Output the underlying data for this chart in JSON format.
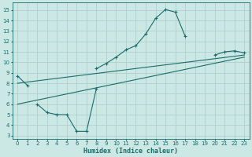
{
  "xlabel": "Humidex (Indice chaleur)",
  "ylabel": "",
  "bg_color": "#cce8e4",
  "line_color": "#1a6b6b",
  "grid_color": "#aecfcc",
  "xlim": [
    -0.5,
    23.5
  ],
  "ylim": [
    2.7,
    15.7
  ],
  "yticks": [
    3,
    4,
    5,
    6,
    7,
    8,
    9,
    10,
    11,
    12,
    13,
    14,
    15
  ],
  "xticks": [
    0,
    1,
    2,
    3,
    4,
    5,
    6,
    7,
    8,
    9,
    10,
    11,
    12,
    13,
    14,
    15,
    16,
    17,
    18,
    19,
    20,
    21,
    22,
    23
  ],
  "curve1_x": [
    0,
    1,
    8,
    9,
    10,
    11,
    12,
    13,
    14,
    15,
    16,
    17,
    20,
    21,
    22,
    23
  ],
  "curve1_y": [
    8.7,
    7.8,
    9.4,
    9.9,
    10.5,
    11.2,
    11.6,
    12.7,
    14.2,
    15.05,
    14.8,
    12.5,
    10.7,
    11.0,
    11.1,
    10.9
  ],
  "curve1_breaks": [
    1,
    17
  ],
  "curve2_x": [
    2,
    3,
    4,
    5,
    6,
    7,
    8
  ],
  "curve2_y": [
    6.0,
    5.2,
    5.0,
    5.0,
    3.4,
    3.4,
    7.5
  ],
  "line1_x": [
    0,
    23
  ],
  "line1_y": [
    8.0,
    10.7
  ],
  "line2_x": [
    0,
    23
  ],
  "line2_y": [
    6.0,
    10.5
  ],
  "tick_fontsize": 5,
  "xlabel_fontsize": 6
}
